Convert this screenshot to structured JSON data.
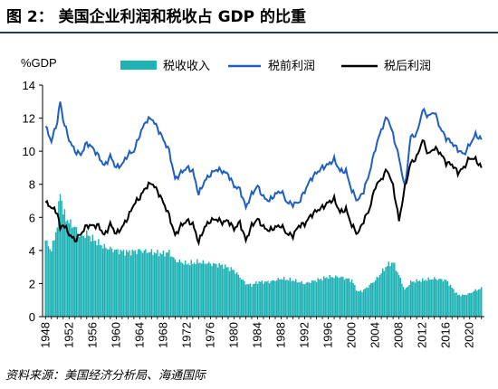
{
  "header": {
    "title": "图 2： 美国企业利润和税收占 GDP 的比重"
  },
  "footer": {
    "source": "资料来源：美国经济分析局、海通国际"
  },
  "chart_data": {
    "type": "bar+line",
    "ylabel": "%GDP",
    "ylim": [
      0,
      14
    ],
    "yticks": [
      "0",
      "2",
      "4",
      "6",
      "8",
      "10",
      "12",
      "14"
    ],
    "xlim": [
      1947.5,
      2022.5
    ],
    "xticks": [
      "1948",
      "1952",
      "1956",
      "1960",
      "1964",
      "1968",
      "1972",
      "1976",
      "1980",
      "1984",
      "1988",
      "1992",
      "1996",
      "2000",
      "2004",
      "2008",
      "2012",
      "2016",
      "2020"
    ],
    "legend_placement": "top",
    "colors": {
      "bars": "#1fb2b4",
      "pretax": "#1f5fbf",
      "aftertax": "#000000"
    },
    "series": [
      {
        "name": "税收收入",
        "kind": "bar",
        "x": [
          1948,
          1949,
          1950,
          1950.5,
          1951,
          1952,
          1953,
          1954,
          1955,
          1956,
          1958,
          1960,
          1962,
          1964,
          1966,
          1968,
          1969,
          1970,
          1972,
          1974,
          1976,
          1978,
          1980,
          1982,
          1983,
          1984,
          1986,
          1988,
          1990,
          1992,
          1994,
          1996,
          1998,
          2000,
          2001,
          2002,
          2004,
          2006,
          2007,
          2008,
          2009,
          2010,
          2012,
          2014,
          2016,
          2018,
          2019,
          2020,
          2021,
          2022
        ],
        "values": [
          4.6,
          4.0,
          5.5,
          7.7,
          6.3,
          5.7,
          5.4,
          4.8,
          5.0,
          4.7,
          4.2,
          4.0,
          3.9,
          4.0,
          3.9,
          3.8,
          3.9,
          3.4,
          3.2,
          3.3,
          3.2,
          3.1,
          2.8,
          2.0,
          1.9,
          2.1,
          2.1,
          2.3,
          2.2,
          2.0,
          2.2,
          2.4,
          2.4,
          2.2,
          1.5,
          1.6,
          2.2,
          3.1,
          3.3,
          2.5,
          1.6,
          2.1,
          2.2,
          2.3,
          2.2,
          1.3,
          1.3,
          1.4,
          1.6,
          1.7
        ]
      },
      {
        "name": "税前利润",
        "kind": "line",
        "x": [
          1948,
          1949,
          1950,
          1950.5,
          1951,
          1952,
          1953,
          1954,
          1955,
          1956,
          1957,
          1958,
          1959,
          1960,
          1961,
          1962,
          1963,
          1964,
          1965,
          1966,
          1967,
          1968,
          1969,
          1970,
          1971,
          1972,
          1973,
          1974,
          1975,
          1976,
          1977,
          1978,
          1979,
          1980,
          1981,
          1982,
          1983,
          1984,
          1985,
          1986,
          1987,
          1988,
          1989,
          1990,
          1991,
          1992,
          1993,
          1994,
          1995,
          1996,
          1997,
          1998,
          1999,
          2000,
          2001,
          2002,
          2003,
          2004,
          2005,
          2006,
          2007,
          2008,
          2009,
          2010,
          2011,
          2012,
          2013,
          2014,
          2015,
          2016,
          2017,
          2018,
          2019,
          2020,
          2021,
          2022
        ],
        "values": [
          11.5,
          10.6,
          11.8,
          13.0,
          11.9,
          10.7,
          10.0,
          9.8,
          10.5,
          10.2,
          9.7,
          9.1,
          9.7,
          9.0,
          9.2,
          9.8,
          10.0,
          11.0,
          11.8,
          12.0,
          11.4,
          10.7,
          10.0,
          8.3,
          8.7,
          9.0,
          8.8,
          7.4,
          8.2,
          8.6,
          8.9,
          8.8,
          8.6,
          7.9,
          7.7,
          6.6,
          7.4,
          7.9,
          7.2,
          7.0,
          7.4,
          7.6,
          6.9,
          6.8,
          6.9,
          7.6,
          8.3,
          8.7,
          9.0,
          9.2,
          9.5,
          8.8,
          8.8,
          7.6,
          7.0,
          7.6,
          8.7,
          10.2,
          11.3,
          12.1,
          11.0,
          9.6,
          7.8,
          10.9,
          11.0,
          12.5,
          12.1,
          12.4,
          11.4,
          10.8,
          10.5,
          10.1,
          9.8,
          10.4,
          11.0,
          10.7
        ]
      },
      {
        "name": "税后利润",
        "kind": "line",
        "x": [
          1948,
          1949,
          1950,
          1950.5,
          1951,
          1952,
          1953,
          1954,
          1955,
          1956,
          1957,
          1958,
          1959,
          1960,
          1961,
          1962,
          1963,
          1964,
          1965,
          1966,
          1967,
          1968,
          1969,
          1970,
          1971,
          1972,
          1973,
          1974,
          1975,
          1976,
          1977,
          1978,
          1979,
          1980,
          1981,
          1982,
          1983,
          1984,
          1985,
          1986,
          1987,
          1988,
          1989,
          1990,
          1991,
          1992,
          1993,
          1994,
          1995,
          1996,
          1997,
          1998,
          1999,
          2000,
          2001,
          2002,
          2003,
          2004,
          2005,
          2006,
          2007,
          2008,
          2009,
          2010,
          2011,
          2012,
          2013,
          2014,
          2015,
          2016,
          2017,
          2018,
          2019,
          2020,
          2021,
          2022
        ],
        "values": [
          6.9,
          6.6,
          6.3,
          5.3,
          5.6,
          5.0,
          4.6,
          5.0,
          5.5,
          5.5,
          5.5,
          4.9,
          5.6,
          5.0,
          5.4,
          6.0,
          6.8,
          7.2,
          7.8,
          8.1,
          7.6,
          6.9,
          6.1,
          4.9,
          5.5,
          5.8,
          5.6,
          4.5,
          5.4,
          5.8,
          5.9,
          5.7,
          5.8,
          5.3,
          5.7,
          4.6,
          5.5,
          5.9,
          5.4,
          5.2,
          5.4,
          5.5,
          5.0,
          4.9,
          5.5,
          5.6,
          6.1,
          6.4,
          6.6,
          6.9,
          7.1,
          6.3,
          6.5,
          5.5,
          5.0,
          5.8,
          6.5,
          7.9,
          8.3,
          8.9,
          7.9,
          5.8,
          7.8,
          9.3,
          9.6,
          10.7,
          9.8,
          10.2,
          9.9,
          9.3,
          9.2,
          8.7,
          9.0,
          9.6,
          9.5,
          9.0
        ]
      }
    ]
  }
}
